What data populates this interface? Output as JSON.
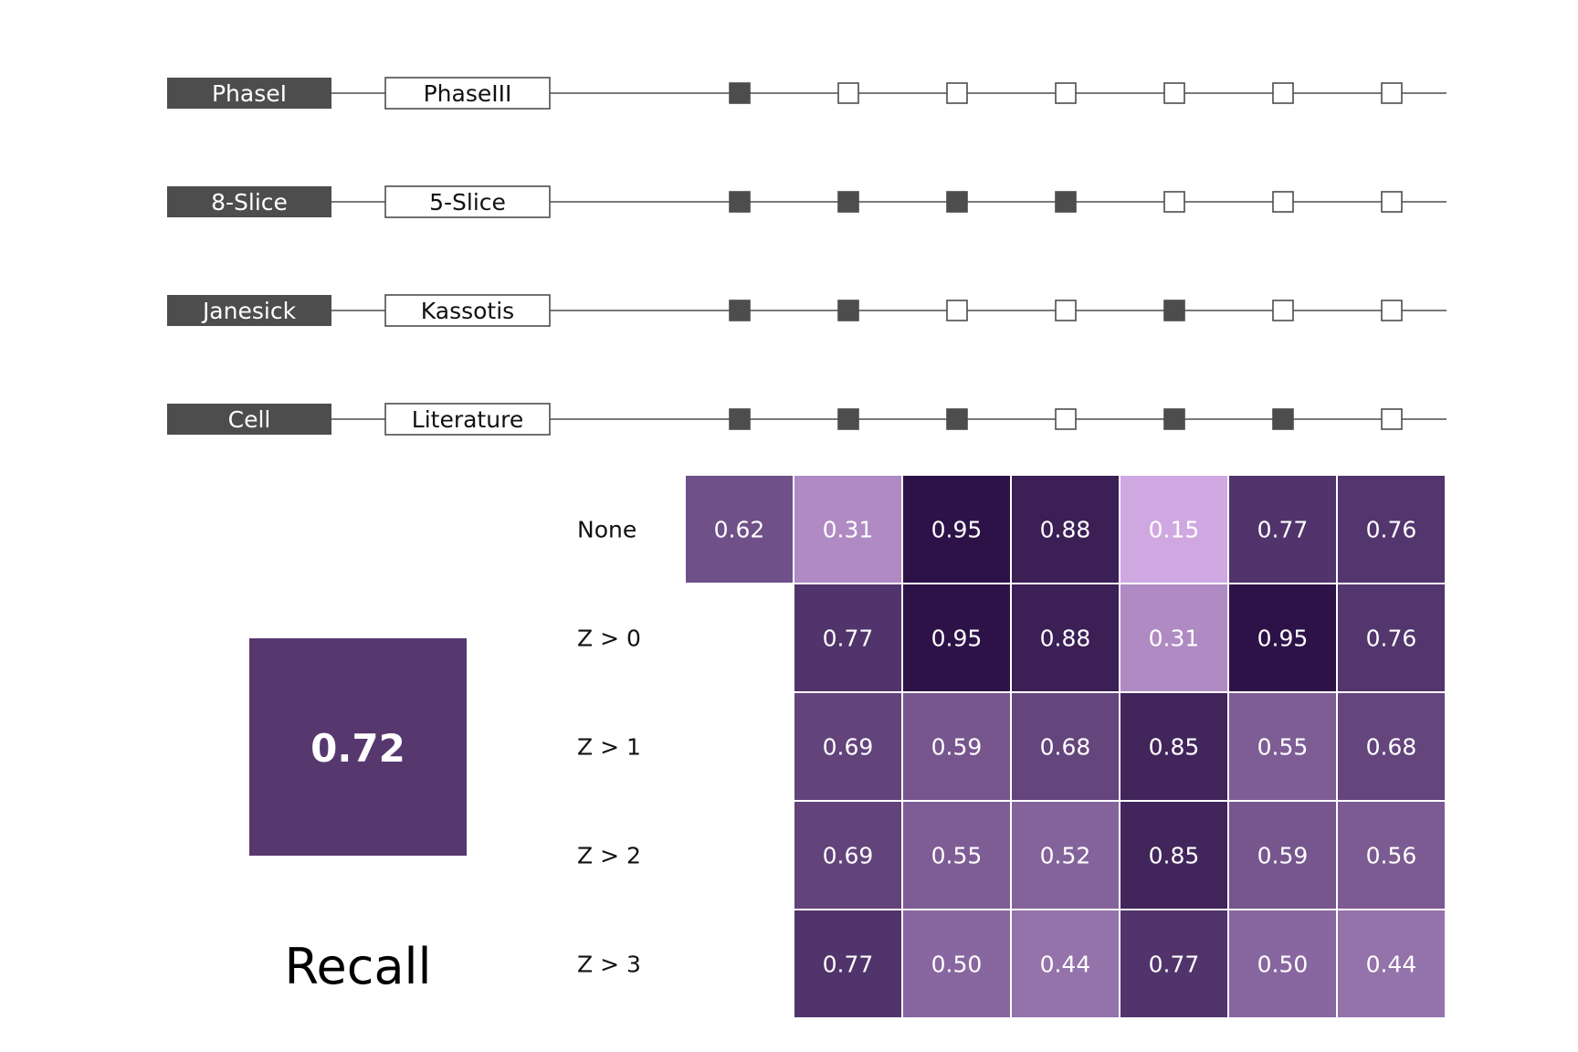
{
  "chart_data": {
    "type": "heatmap",
    "comparisons": [
      {
        "left": "PhaseI",
        "right": "PhaseIII",
        "dots": [
          1,
          0,
          0,
          0,
          0,
          0,
          0
        ]
      },
      {
        "left": "8-Slice",
        "right": "5-Slice",
        "dots": [
          1,
          1,
          1,
          1,
          0,
          0,
          0
        ]
      },
      {
        "left": "Janesick",
        "right": "Kassotis",
        "dots": [
          1,
          1,
          0,
          0,
          1,
          0,
          0
        ]
      },
      {
        "left": "Cell",
        "right": "Literature",
        "dots": [
          1,
          1,
          1,
          0,
          1,
          1,
          0
        ]
      }
    ],
    "rows": [
      "None",
      "Z > 0",
      "Z > 1",
      "Z > 2",
      "Z > 3"
    ],
    "values": [
      [
        "0.62",
        "0.31",
        "0.95",
        "0.88",
        "0.15",
        "0.77",
        "0.76"
      ],
      [
        null,
        "0.77",
        "0.95",
        "0.88",
        "0.31",
        "0.95",
        "0.76"
      ],
      [
        null,
        "0.69",
        "0.59",
        "0.68",
        "0.85",
        "0.55",
        "0.68"
      ],
      [
        null,
        "0.69",
        "0.55",
        "0.52",
        "0.85",
        "0.59",
        "0.56"
      ],
      [
        null,
        "0.77",
        "0.50",
        "0.44",
        "0.77",
        "0.50",
        "0.44"
      ]
    ],
    "summary": {
      "value": "0.72",
      "label": "Recall"
    },
    "colors": {
      "filled": "#4d4d4d",
      "low": "#cfa8e2",
      "high": "#2d1248",
      "summary": "#56386f"
    }
  }
}
